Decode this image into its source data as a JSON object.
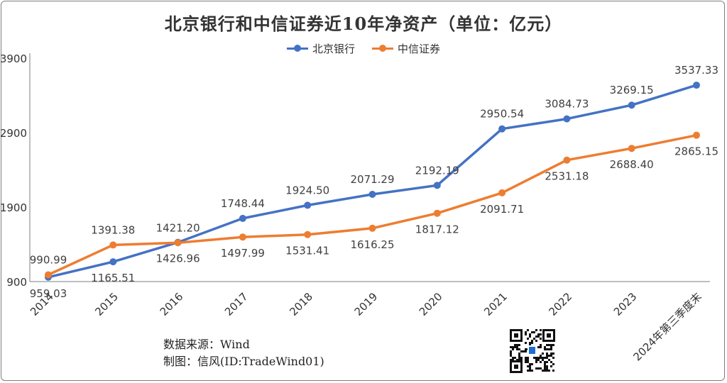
{
  "chart_data": {
    "type": "line",
    "title": "北京银行和中信证券近10年净资产（单位：亿元）",
    "categories": [
      "2014",
      "2015",
      "2016",
      "2017",
      "2018",
      "2019",
      "2020",
      "2021",
      "2022",
      "2023",
      "2024年第三季度末"
    ],
    "series": [
      {
        "name": "北京银行",
        "color": "#4472C4",
        "values": [
          959.03,
          1165.51,
          1426.96,
          1748.44,
          1924.5,
          2071.29,
          2192.19,
          2950.54,
          3084.73,
          3269.15,
          3537.33
        ],
        "labels": [
          "959.03",
          "1165.51",
          "1426.96",
          "1748.44",
          "1924.50",
          "2071.29",
          "2192.19",
          "2950.54",
          "3084.73",
          "3269.15",
          "3537.33"
        ]
      },
      {
        "name": "中信证券",
        "color": "#ED7D31",
        "values": [
          990.99,
          1391.38,
          1421.2,
          1497.99,
          1531.41,
          1616.25,
          1817.12,
          2091.71,
          2531.18,
          2688.4,
          2865.15
        ],
        "labels": [
          "990.99",
          "1391.38",
          "1421.20",
          "1497.99",
          "1531.41",
          "1616.25",
          "1817.12",
          "2091.71",
          "2531.18",
          "2688.40",
          "2865.15"
        ]
      }
    ],
    "yticks": [
      900,
      1900,
      2900,
      3900
    ],
    "ylim": [
      900,
      3900
    ],
    "legend_position": "top-center",
    "grid": false
  },
  "footer": {
    "source": "数据来源：Wind",
    "author": "制图：信风(ID:TradeWind01)"
  }
}
